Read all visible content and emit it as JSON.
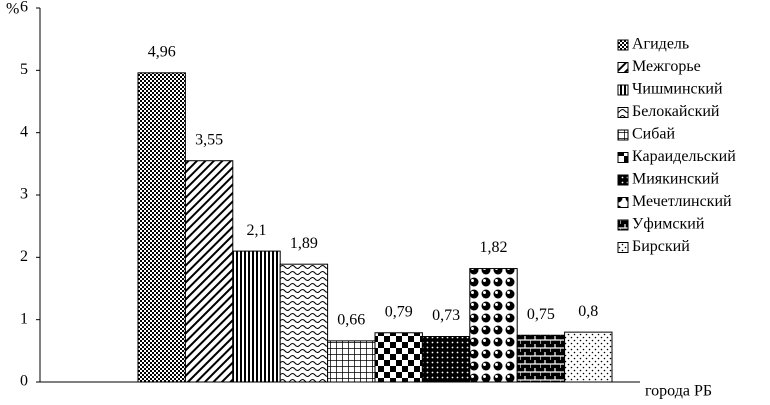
{
  "chart_data": {
    "type": "bar",
    "y_label": "%",
    "x_label": "города РБ",
    "categories": [
      null
    ],
    "ylim": [
      0,
      6
    ],
    "yticks": [
      0,
      1,
      2,
      3,
      4,
      5,
      6
    ],
    "grid": false,
    "series": [
      {
        "name": "Агидель",
        "pattern": "checker-fine",
        "color": "#000000",
        "values": [
          4.96
        ],
        "value_labels": [
          "4,96"
        ]
      },
      {
        "name": "Межгорье",
        "pattern": "diagonal",
        "color": "#000000",
        "values": [
          3.55
        ],
        "value_labels": [
          "3,55"
        ]
      },
      {
        "name": "Чишминский",
        "pattern": "vertical",
        "color": "#000000",
        "values": [
          2.1
        ],
        "value_labels": [
          "2,1"
        ]
      },
      {
        "name": "Белокайский",
        "pattern": "wave",
        "color": "#000000",
        "values": [
          1.89
        ],
        "value_labels": [
          "1,89"
        ]
      },
      {
        "name": "Сибай",
        "pattern": "grid",
        "color": "#000000",
        "values": [
          0.66
        ],
        "value_labels": [
          "0,66"
        ]
      },
      {
        "name": "Караидельский",
        "pattern": "checker",
        "color": "#000000",
        "values": [
          0.79
        ],
        "value_labels": [
          "0,79"
        ]
      },
      {
        "name": "Миякинский",
        "pattern": "dots-dark",
        "color": "#000000",
        "values": [
          0.73
        ],
        "value_labels": [
          "0,73"
        ]
      },
      {
        "name": "Мечетлинский",
        "pattern": "circles",
        "color": "#000000",
        "values": [
          1.82
        ],
        "value_labels": [
          "1,82"
        ]
      },
      {
        "name": "Уфимский",
        "pattern": "brick",
        "color": "#000000",
        "values": [
          0.75
        ],
        "value_labels": [
          "0,75"
        ]
      },
      {
        "name": "Бирский",
        "pattern": "dots",
        "color": "#000000",
        "values": [
          0.8
        ],
        "value_labels": [
          "0,8"
        ]
      }
    ]
  }
}
